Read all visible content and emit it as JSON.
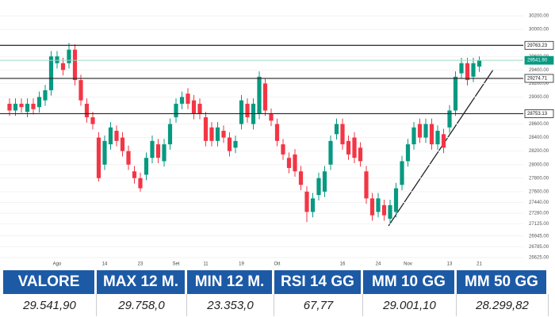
{
  "chart_data": {
    "type": "candlestick",
    "categories": [
      null,
      null,
      null,
      null,
      null,
      null,
      null,
      null,
      "Ago",
      null,
      null,
      null,
      null,
      null,
      null,
      null,
      "14",
      null,
      null,
      null,
      null,
      null,
      "23",
      null,
      null,
      null,
      null,
      null,
      "Set",
      null,
      null,
      null,
      null,
      "11",
      null,
      null,
      null,
      null,
      null,
      "19",
      null,
      null,
      null,
      null,
      null,
      "Ott",
      null,
      null,
      null,
      null,
      null,
      null,
      null,
      null,
      null,
      null,
      "16",
      null,
      null,
      null,
      null,
      null,
      "24",
      null,
      null,
      null,
      null,
      "Nov",
      null,
      null,
      null,
      null,
      null,
      null,
      "13",
      null,
      null,
      null,
      null,
      "21"
    ],
    "open": [
      28900,
      28800,
      28900,
      28780,
      28900,
      28850,
      28950,
      29100,
      29500,
      29500,
      29500,
      29700,
      29250,
      28900,
      28700,
      28400,
      28000,
      28300,
      28500,
      28400,
      28200,
      27900,
      27800,
      27850,
      28100,
      28300,
      28050,
      28300,
      28700,
      28900,
      29050,
      28950,
      28900,
      28700,
      28550,
      28350,
      28500,
      28400,
      28250,
      28600,
      28900,
      28600,
      28750,
      29200,
      28750,
      28600,
      28300,
      28100,
      28150,
      27900,
      27600,
      27300,
      27550,
      27600,
      28000,
      28450,
      28600,
      28350,
      28400,
      28250,
      27900,
      27500,
      27300,
      27400,
      27200,
      27300,
      27700,
      28050,
      28300,
      28600,
      28400,
      28600,
      28300,
      28450,
      28550,
      28800,
      29350,
      29500,
      29300,
      29450
    ],
    "close": [
      28800,
      28900,
      28850,
      28900,
      28820,
      29000,
      29100,
      29600,
      29600,
      29400,
      29700,
      29250,
      28950,
      28700,
      28600,
      27800,
      28350,
      28550,
      28350,
      28200,
      28000,
      27800,
      27650,
      28100,
      28350,
      28100,
      28300,
      28600,
      28900,
      29000,
      28900,
      28750,
      28750,
      28350,
      28350,
      28550,
      28400,
      28200,
      28350,
      28950,
      28700,
      28900,
      29300,
      28800,
      28650,
      28350,
      28150,
      27950,
      27900,
      27700,
      27300,
      27500,
      27800,
      27900,
      28350,
      28600,
      28300,
      28150,
      28100,
      28050,
      27500,
      27250,
      27500,
      27250,
      27400,
      27650,
      28050,
      28300,
      28550,
      28400,
      28600,
      28300,
      28500,
      28250,
      28800,
      29300,
      29500,
      29250,
      29500,
      29541.9
    ],
    "high": [
      28980,
      28980,
      28980,
      28980,
      28980,
      29080,
      29180,
      29680,
      29680,
      29580,
      29800,
      29780,
      29330,
      28980,
      28780,
      28480,
      28430,
      28630,
      28580,
      28480,
      28280,
      27980,
      27880,
      28180,
      28430,
      28380,
      28380,
      28680,
      28980,
      29080,
      29130,
      29030,
      28980,
      28780,
      28630,
      28630,
      28580,
      28480,
      28430,
      29030,
      28980,
      28980,
      29380,
      29280,
      28830,
      28680,
      28380,
      28180,
      28230,
      27980,
      27680,
      27580,
      27880,
      27980,
      28430,
      28680,
      28680,
      28430,
      28480,
      28330,
      27980,
      27580,
      27580,
      27480,
      27480,
      27730,
      28130,
      28380,
      28630,
      28680,
      28680,
      28680,
      28580,
      28530,
      28880,
      29380,
      29580,
      29580,
      29580,
      29600
    ],
    "low": [
      28720,
      28720,
      28770,
      28700,
      28740,
      28770,
      28870,
      29020,
      29420,
      29320,
      29420,
      29170,
      28870,
      28620,
      28520,
      27750,
      27920,
      28220,
      28270,
      28120,
      27920,
      27720,
      27600,
      27770,
      28020,
      28020,
      27970,
      28220,
      28620,
      28820,
      28820,
      28670,
      28670,
      28270,
      28270,
      28270,
      28320,
      28120,
      28170,
      28520,
      28620,
      28520,
      28670,
      28720,
      28570,
      28270,
      28070,
      27870,
      27820,
      27620,
      27150,
      27220,
      27470,
      27520,
      27920,
      28370,
      28220,
      28070,
      28020,
      27970,
      27420,
      27170,
      27220,
      27170,
      27120,
      27220,
      27620,
      27970,
      28220,
      28320,
      28320,
      28220,
      28220,
      28170,
      28470,
      28720,
      29270,
      29170,
      29220,
      29370
    ],
    "up_color": "#089981",
    "down_color": "#f23645",
    "ylim": [
      26625,
      30200
    ],
    "yticks": [
      {
        "value": 30200,
        "label": "30200.00"
      },
      {
        "value": 30000,
        "label": "30000.00"
      },
      {
        "value": 29600,
        "label": "29600.00"
      },
      {
        "value": 29400,
        "label": "29400.00"
      },
      {
        "value": 29200,
        "label": "29200.00"
      },
      {
        "value": 29000,
        "label": "29000.00"
      },
      {
        "value": 28600,
        "label": "28600.00"
      },
      {
        "value": 28400,
        "label": "28400.00"
      },
      {
        "value": 28200,
        "label": "28200.00"
      },
      {
        "value": 28000,
        "label": "28000.00"
      },
      {
        "value": 27800,
        "label": "27800.00"
      },
      {
        "value": 27600,
        "label": "27600.00"
      },
      {
        "value": 27440,
        "label": "27440.00"
      },
      {
        "value": 27280,
        "label": "27280.00"
      },
      {
        "value": 27125,
        "label": "27125.00"
      },
      {
        "value": 26945,
        "label": "26945.00"
      },
      {
        "value": 26785,
        "label": "26785.00"
      },
      {
        "value": 26625,
        "label": "26625.00"
      }
    ],
    "levels": [
      29763.23,
      {
        "value": 29541.9,
        "label": "29541.90"
      },
      29274.71,
      28753.13
    ]
  },
  "table": {
    "headers": [
      "VALORE",
      "MAX 12 M.",
      "MIN 12 M.",
      "RSI 14 GG",
      "MM 10 GG",
      "MM 50 GG"
    ],
    "rows": [
      [
        "29.541,90",
        "29.758,0",
        "23.353,0",
        "67,77",
        "29.001,10",
        "28.299,82"
      ]
    ]
  }
}
